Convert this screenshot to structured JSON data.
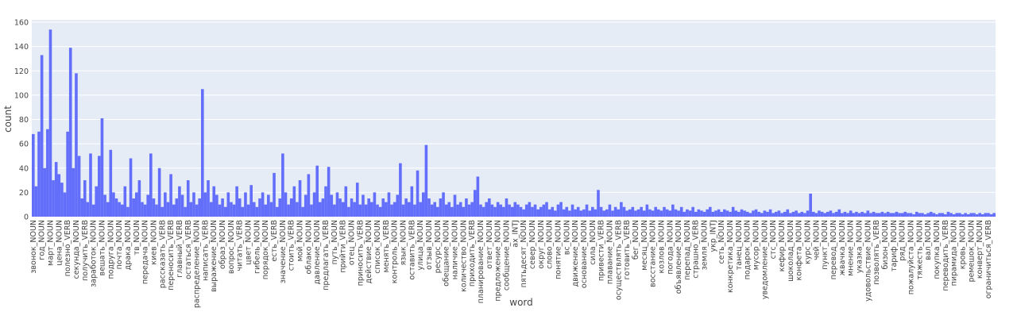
{
  "chart_data": {
    "type": "bar",
    "xlabel": "word",
    "ylabel": "count",
    "color": "#636efa",
    "grid": true,
    "ylim": [
      0,
      162
    ],
    "yticks": [
      0,
      20,
      40,
      60,
      80,
      100,
      120,
      140,
      160
    ],
    "categories": [
      "звонок_NOUN",
      null,
      null,
      "год_NOUN",
      null,
      null,
      "март_NOUN",
      null,
      null,
      "цена_NOUN",
      null,
      null,
      "полезно_VERB",
      null,
      null,
      "секунда_NOUN",
      null,
      null,
      "получить_VERB",
      null,
      null,
      "заработок_NOUN",
      null,
      null,
      "вешать_NOUN",
      null,
      null,
      "подруга_NOUN",
      null,
      null,
      "почта_NOUN",
      null,
      null,
      "драка_NOUN",
      null,
      null,
      "тв_NOUN",
      null,
      null,
      "передача_NOUN",
      null,
      null,
      "киев_NOUN",
      null,
      null,
      "рассказать_VERB",
      null,
      null,
      "переносить_VERB",
      null,
      null,
      "главный_VERB",
      null,
      null,
      "остаться_VERB",
      null,
      null,
      "распределение_NOUN",
      null,
      null,
      "написать_VERB",
      null,
      null,
      "выражение_NOUN",
      null,
      null,
      "образ_NOUN",
      null,
      null,
      "вопрос_NOUN",
      null,
      null,
      "читать_VERB",
      null,
      null,
      "цвет_NOUN",
      null,
      null,
      "гибель_NOUN",
      null,
      null,
      "порядок_NOUN",
      null,
      null,
      "есть_VERB",
      null,
      null,
      "значение_NOUN",
      null,
      null,
      "стоить_VERB",
      null,
      null,
      "мой_NOUN",
      null,
      null,
      "облако_NOUN",
      null,
      null,
      "давление_NOUN",
      null,
      null,
      "предлагать_VERB",
      null,
      null,
      "путь_NOUN",
      null,
      null,
      "прийти_VERB",
      null,
      null,
      "отец_NOUN",
      null,
      null,
      "приносить_VERB",
      null,
      null,
      "действие_NOUN",
      null,
      null,
      "список_NOUN",
      null,
      null,
      "менять_VERB",
      null,
      null,
      "контроль_NOUN",
      null,
      null,
      "язык_NOUN",
      null,
      null,
      "оставить_VERB",
      null,
      null,
      "улица_NOUN",
      null,
      null,
      "отзыв_NOUN",
      null,
      null,
      "ресурс_NOUN",
      null,
      null,
      "обещание_NOUN",
      null,
      null,
      "наличие_NOUN",
      null,
      null,
      "количество_NOUN",
      null,
      null,
      "приходить_VERB",
      null,
      null,
      "планирование_NOUN",
      null,
      null,
      "ответ_NOUN",
      null,
      null,
      "предложение_NOUN",
      null,
      null,
      "сообщение_NOUN",
      null,
      null,
      "ах_INTJ",
      null,
      null,
      "пятьдесят_NOUN",
      null,
      null,
      "север_NOUN",
      null,
      null,
      "округ_NOUN",
      null,
      null,
      "слово_NOUN",
      null,
      null,
      "понятие_NOUN",
      null,
      null,
      "вс_NOUN",
      null,
      null,
      "движение_NOUN",
      null,
      null,
      "основание_NOUN",
      null,
      null,
      "сила_NOUN",
      null,
      null,
      "привести_VERB",
      null,
      null,
      "плавание_NOUN",
      null,
      null,
      "осуществлять_VERB",
      null,
      null,
      "готовить_VERB",
      null,
      null,
      "бег_NOUN",
      null,
      null,
      "месяц_NOUN",
      null,
      null,
      "восстание_NOUN",
      null,
      null,
      "козлов_NOUN",
      null,
      null,
      "погода_NOUN",
      null,
      null,
      "объявление_NOUN",
      null,
      null,
      "перепад_NOUN",
      null,
      null,
      "страшно_VERB",
      null,
      null,
      "земля_NOUN",
      null,
      null,
      "укр_INTJ",
      null,
      null,
      "сеть_NOUN",
      null,
      null,
      "конкретика_NOUN",
      null,
      null,
      "танец_NOUN",
      null,
      null,
      "подарок_NOUN",
      null,
      null,
      "мусор_NOUN",
      null,
      null,
      "уведомление_NOUN",
      null,
      null,
      "стс_NOUN",
      null,
      null,
      "кефир_NOUN",
      null,
      null,
      "шоколад_NOUN",
      null,
      null,
      "конфета_NOUN",
      null,
      null,
      "курс_NOUN",
      null,
      null,
      "чей_NOUN",
      null,
      null,
      "пункт_NOUN",
      null,
      null,
      "перевод_NOUN",
      null,
      null,
      "жвачка_NOUN",
      null,
      null,
      "мнение_NOUN",
      null,
      null,
      "указка_NOUN",
      null,
      null,
      "удовольствие_NOUN",
      null,
      null,
      "позволять_VERB",
      null,
      null,
      "бизон_NOUN",
      null,
      null,
      "тариф_NOUN",
      null,
      null,
      "ряд_NOUN",
      null,
      null,
      "пожалуйста_NOUN",
      null,
      null,
      "тяжесть_NOUN",
      null,
      null,
      "вал_NOUN",
      null,
      null,
      "покупка_NOUN",
      null,
      null,
      "переводить_VERB",
      null,
      null,
      "пирамида_NOUN",
      null,
      null,
      "кровь_NOUN",
      null,
      null,
      "ремешок_NOUN",
      null,
      null,
      "конверт_NOUN",
      null,
      null,
      "ограничиться_VERB",
      null,
      null
    ],
    "values": [
      68,
      25,
      70,
      133,
      40,
      72,
      154,
      30,
      45,
      35,
      28,
      20,
      70,
      139,
      40,
      118,
      50,
      15,
      30,
      12,
      52,
      10,
      25,
      50,
      81,
      18,
      12,
      55,
      20,
      15,
      12,
      10,
      25,
      8,
      48,
      15,
      20,
      30,
      12,
      10,
      18,
      52,
      15,
      10,
      40,
      8,
      20,
      12,
      35,
      10,
      15,
      25,
      18,
      8,
      30,
      12,
      20,
      10,
      15,
      105,
      20,
      30,
      12,
      25,
      18,
      10,
      15,
      8,
      20,
      12,
      10,
      25,
      15,
      8,
      20,
      10,
      26,
      12,
      8,
      15,
      20,
      10,
      18,
      12,
      36,
      8,
      15,
      52,
      20,
      10,
      15,
      25,
      12,
      30,
      8,
      18,
      35,
      10,
      20,
      42,
      12,
      15,
      25,
      41,
      18,
      10,
      20,
      15,
      12,
      25,
      8,
      15,
      12,
      28,
      10,
      18,
      10,
      15,
      12,
      20,
      10,
      8,
      15,
      12,
      20,
      10,
      12,
      18,
      44,
      10,
      15,
      12,
      25,
      10,
      38,
      12,
      20,
      59,
      15,
      10,
      12,
      8,
      15,
      20,
      10,
      12,
      8,
      18,
      10,
      12,
      8,
      15,
      10,
      12,
      22,
      33,
      10,
      8,
      12,
      15,
      10,
      8,
      12,
      10,
      8,
      15,
      10,
      8,
      12,
      10,
      8,
      6,
      10,
      12,
      8,
      10,
      6,
      8,
      10,
      12,
      6,
      8,
      5,
      10,
      12,
      6,
      8,
      5,
      10,
      6,
      8,
      5,
      6,
      10,
      5,
      8,
      6,
      22,
      8,
      5,
      6,
      10,
      5,
      8,
      6,
      12,
      8,
      5,
      6,
      8,
      5,
      6,
      8,
      5,
      10,
      6,
      5,
      8,
      6,
      5,
      8,
      6,
      5,
      10,
      6,
      5,
      8,
      4,
      6,
      5,
      8,
      4,
      6,
      5,
      4,
      6,
      8,
      4,
      5,
      6,
      4,
      6,
      5,
      4,
      8,
      5,
      4,
      6,
      5,
      4,
      3,
      5,
      6,
      4,
      3,
      5,
      4,
      6,
      3,
      4,
      5,
      3,
      4,
      6,
      3,
      4,
      5,
      3,
      4,
      3,
      5,
      19,
      4,
      3,
      5,
      4,
      3,
      4,
      5,
      3,
      4,
      6,
      3,
      4,
      3,
      5,
      3,
      4,
      3,
      4,
      3,
      5,
      3,
      4,
      3,
      3,
      4,
      3,
      4,
      3,
      3,
      4,
      3,
      3,
      4,
      3,
      3,
      2,
      4,
      3,
      3,
      2,
      3,
      4,
      3,
      2,
      3,
      3,
      2,
      4,
      3,
      2,
      3,
      3,
      2,
      3,
      2,
      3,
      3,
      2,
      3,
      2,
      3,
      3,
      2,
      3
    ]
  }
}
